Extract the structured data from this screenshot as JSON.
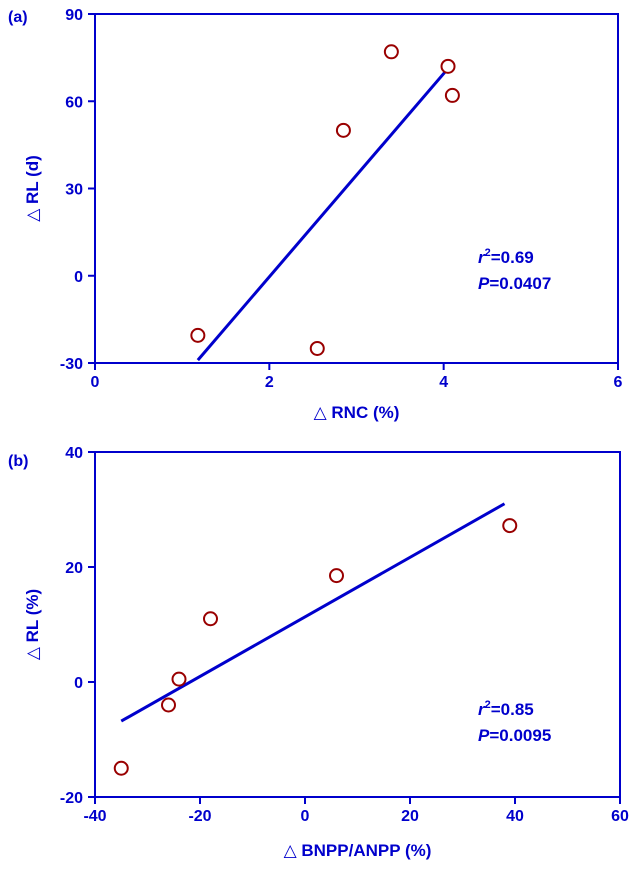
{
  "theme": {
    "axis_color": "#0000CC",
    "text_color": "#0000CC",
    "line_color": "#0000CC",
    "marker_color": "#990000"
  },
  "chart_data": [
    {
      "type": "scatter",
      "panel_label": "(a)",
      "title": "",
      "xlabel": "△ RNC (%)",
      "ylabel": "△ RL (d)",
      "xlim": [
        0,
        6
      ],
      "ylim": [
        -30,
        90
      ],
      "x_ticks": [
        0,
        2,
        4,
        6
      ],
      "y_ticks": [
        -30,
        0,
        30,
        60,
        90
      ],
      "grid": false,
      "legend": "none",
      "points": [
        {
          "x": 1.18,
          "y": -20.5
        },
        {
          "x": 2.55,
          "y": -25
        },
        {
          "x": 2.85,
          "y": 50
        },
        {
          "x": 3.4,
          "y": 77
        },
        {
          "x": 4.05,
          "y": 72
        },
        {
          "x": 4.1,
          "y": 62
        }
      ],
      "fit_line": {
        "x": [
          1.18,
          4.1
        ],
        "y": [
          -29,
          73
        ]
      },
      "annotation": {
        "r_label": "r",
        "r_sup": "2",
        "r_value": "=0.69",
        "p_label": "P",
        "p_value": "=0.0407"
      }
    },
    {
      "type": "scatter",
      "panel_label": "(b)",
      "title": "",
      "xlabel": "△ BNPP/ANPP (%)",
      "ylabel": "△ RL (%)",
      "xlim": [
        -40,
        60
      ],
      "ylim": [
        -20,
        40
      ],
      "x_ticks": [
        -40,
        -20,
        0,
        20,
        40,
        60
      ],
      "y_ticks": [
        -20,
        0,
        20,
        40
      ],
      "grid": false,
      "legend": "none",
      "points": [
        {
          "x": -35,
          "y": -15
        },
        {
          "x": -26,
          "y": -4
        },
        {
          "x": -24,
          "y": 0.5
        },
        {
          "x": -18,
          "y": 11
        },
        {
          "x": 6,
          "y": 18.5
        },
        {
          "x": 39,
          "y": 27.2
        }
      ],
      "fit_line": {
        "x": [
          -35,
          38
        ],
        "y": [
          -6.8,
          31
        ]
      },
      "annotation": {
        "r_label": "r",
        "r_sup": "2",
        "r_value": "=0.85",
        "p_label": "P",
        "p_value": "=0.0095"
      }
    }
  ]
}
